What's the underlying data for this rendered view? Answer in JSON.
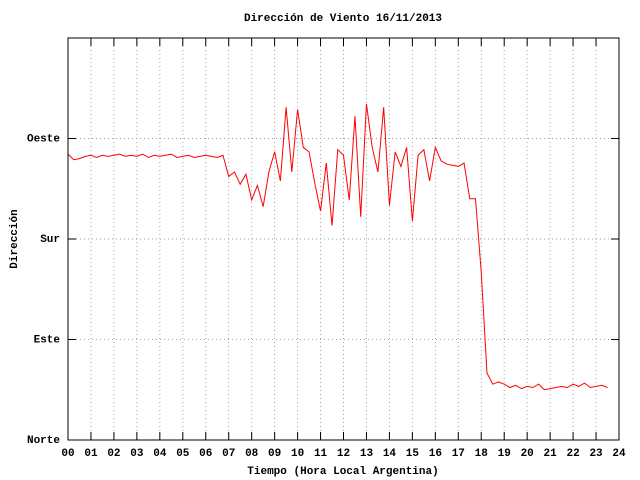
{
  "chart_data": {
    "type": "line",
    "title": "Dirección de Viento 16/11/2013",
    "xlabel": "Tiempo (Hora Local Argentina)",
    "ylabel": "Dirección",
    "x": [
      0,
      0.25,
      0.5,
      0.75,
      1,
      1.25,
      1.5,
      1.75,
      2,
      2.25,
      2.5,
      2.75,
      3,
      3.25,
      3.5,
      3.75,
      4,
      4.25,
      4.5,
      4.75,
      5,
      5.25,
      5.5,
      5.75,
      6,
      6.25,
      6.5,
      6.75,
      7,
      7.25,
      7.5,
      7.75,
      8,
      8.25,
      8.5,
      8.75,
      9,
      9.25,
      9.5,
      9.75,
      10,
      10.25,
      10.5,
      10.75,
      11,
      11.25,
      11.5,
      11.75,
      12,
      12.25,
      12.5,
      12.75,
      13,
      13.25,
      13.5,
      13.75,
      14,
      14.25,
      14.5,
      14.75,
      15,
      15.25,
      15.5,
      15.75,
      16,
      16.25,
      16.5,
      16.75,
      17,
      17.25,
      17.5,
      17.75,
      18,
      18.25,
      18.5,
      18.75,
      19,
      19.25,
      19.5,
      19.75,
      20,
      20.25,
      20.5,
      20.75,
      21,
      21.25,
      21.5,
      21.75,
      22,
      22.25,
      22.5,
      22.75,
      23,
      23.25,
      23.5
    ],
    "series": [
      {
        "name": "Dirección",
        "color": "#ff0000",
        "values": [
          256,
          251,
          252,
          254,
          255,
          253,
          255,
          254,
          255,
          256,
          254,
          255,
          254,
          256,
          253,
          255,
          254,
          255,
          256,
          253,
          254,
          255,
          253,
          254,
          255,
          254,
          253,
          255,
          236,
          240,
          229,
          238,
          215,
          228,
          209,
          240,
          258,
          232,
          298,
          240,
          296,
          262,
          258,
          230,
          205,
          248,
          192,
          260,
          255,
          215,
          290,
          200,
          301,
          262,
          240,
          298,
          210,
          258,
          245,
          262,
          196,
          255,
          260,
          232,
          262,
          250,
          247,
          246,
          245,
          248,
          216,
          216,
          150,
          60,
          50,
          52,
          50,
          47,
          49,
          46,
          48,
          47,
          50,
          45,
          46,
          47,
          48,
          47,
          50,
          48,
          51,
          47,
          48,
          49,
          47
        ]
      }
    ],
    "xlim": [
      0,
      24
    ],
    "xticks": [
      {
        "value": 0,
        "label": "00"
      },
      {
        "value": 1,
        "label": "01"
      },
      {
        "value": 2,
        "label": "02"
      },
      {
        "value": 3,
        "label": "03"
      },
      {
        "value": 4,
        "label": "04"
      },
      {
        "value": 5,
        "label": "05"
      },
      {
        "value": 6,
        "label": "06"
      },
      {
        "value": 7,
        "label": "07"
      },
      {
        "value": 8,
        "label": "08"
      },
      {
        "value": 9,
        "label": "09"
      },
      10,
      11,
      12,
      13,
      14,
      15,
      16,
      17,
      18,
      19,
      20,
      21,
      22,
      23,
      24
    ],
    "ylim": [
      0,
      360
    ],
    "yticks": [
      {
        "value": 0,
        "label": "Norte"
      },
      {
        "value": 90,
        "label": "Este"
      },
      {
        "value": 180,
        "label": "Sur"
      },
      {
        "value": 270,
        "label": "Oeste"
      }
    ],
    "grid": true
  }
}
